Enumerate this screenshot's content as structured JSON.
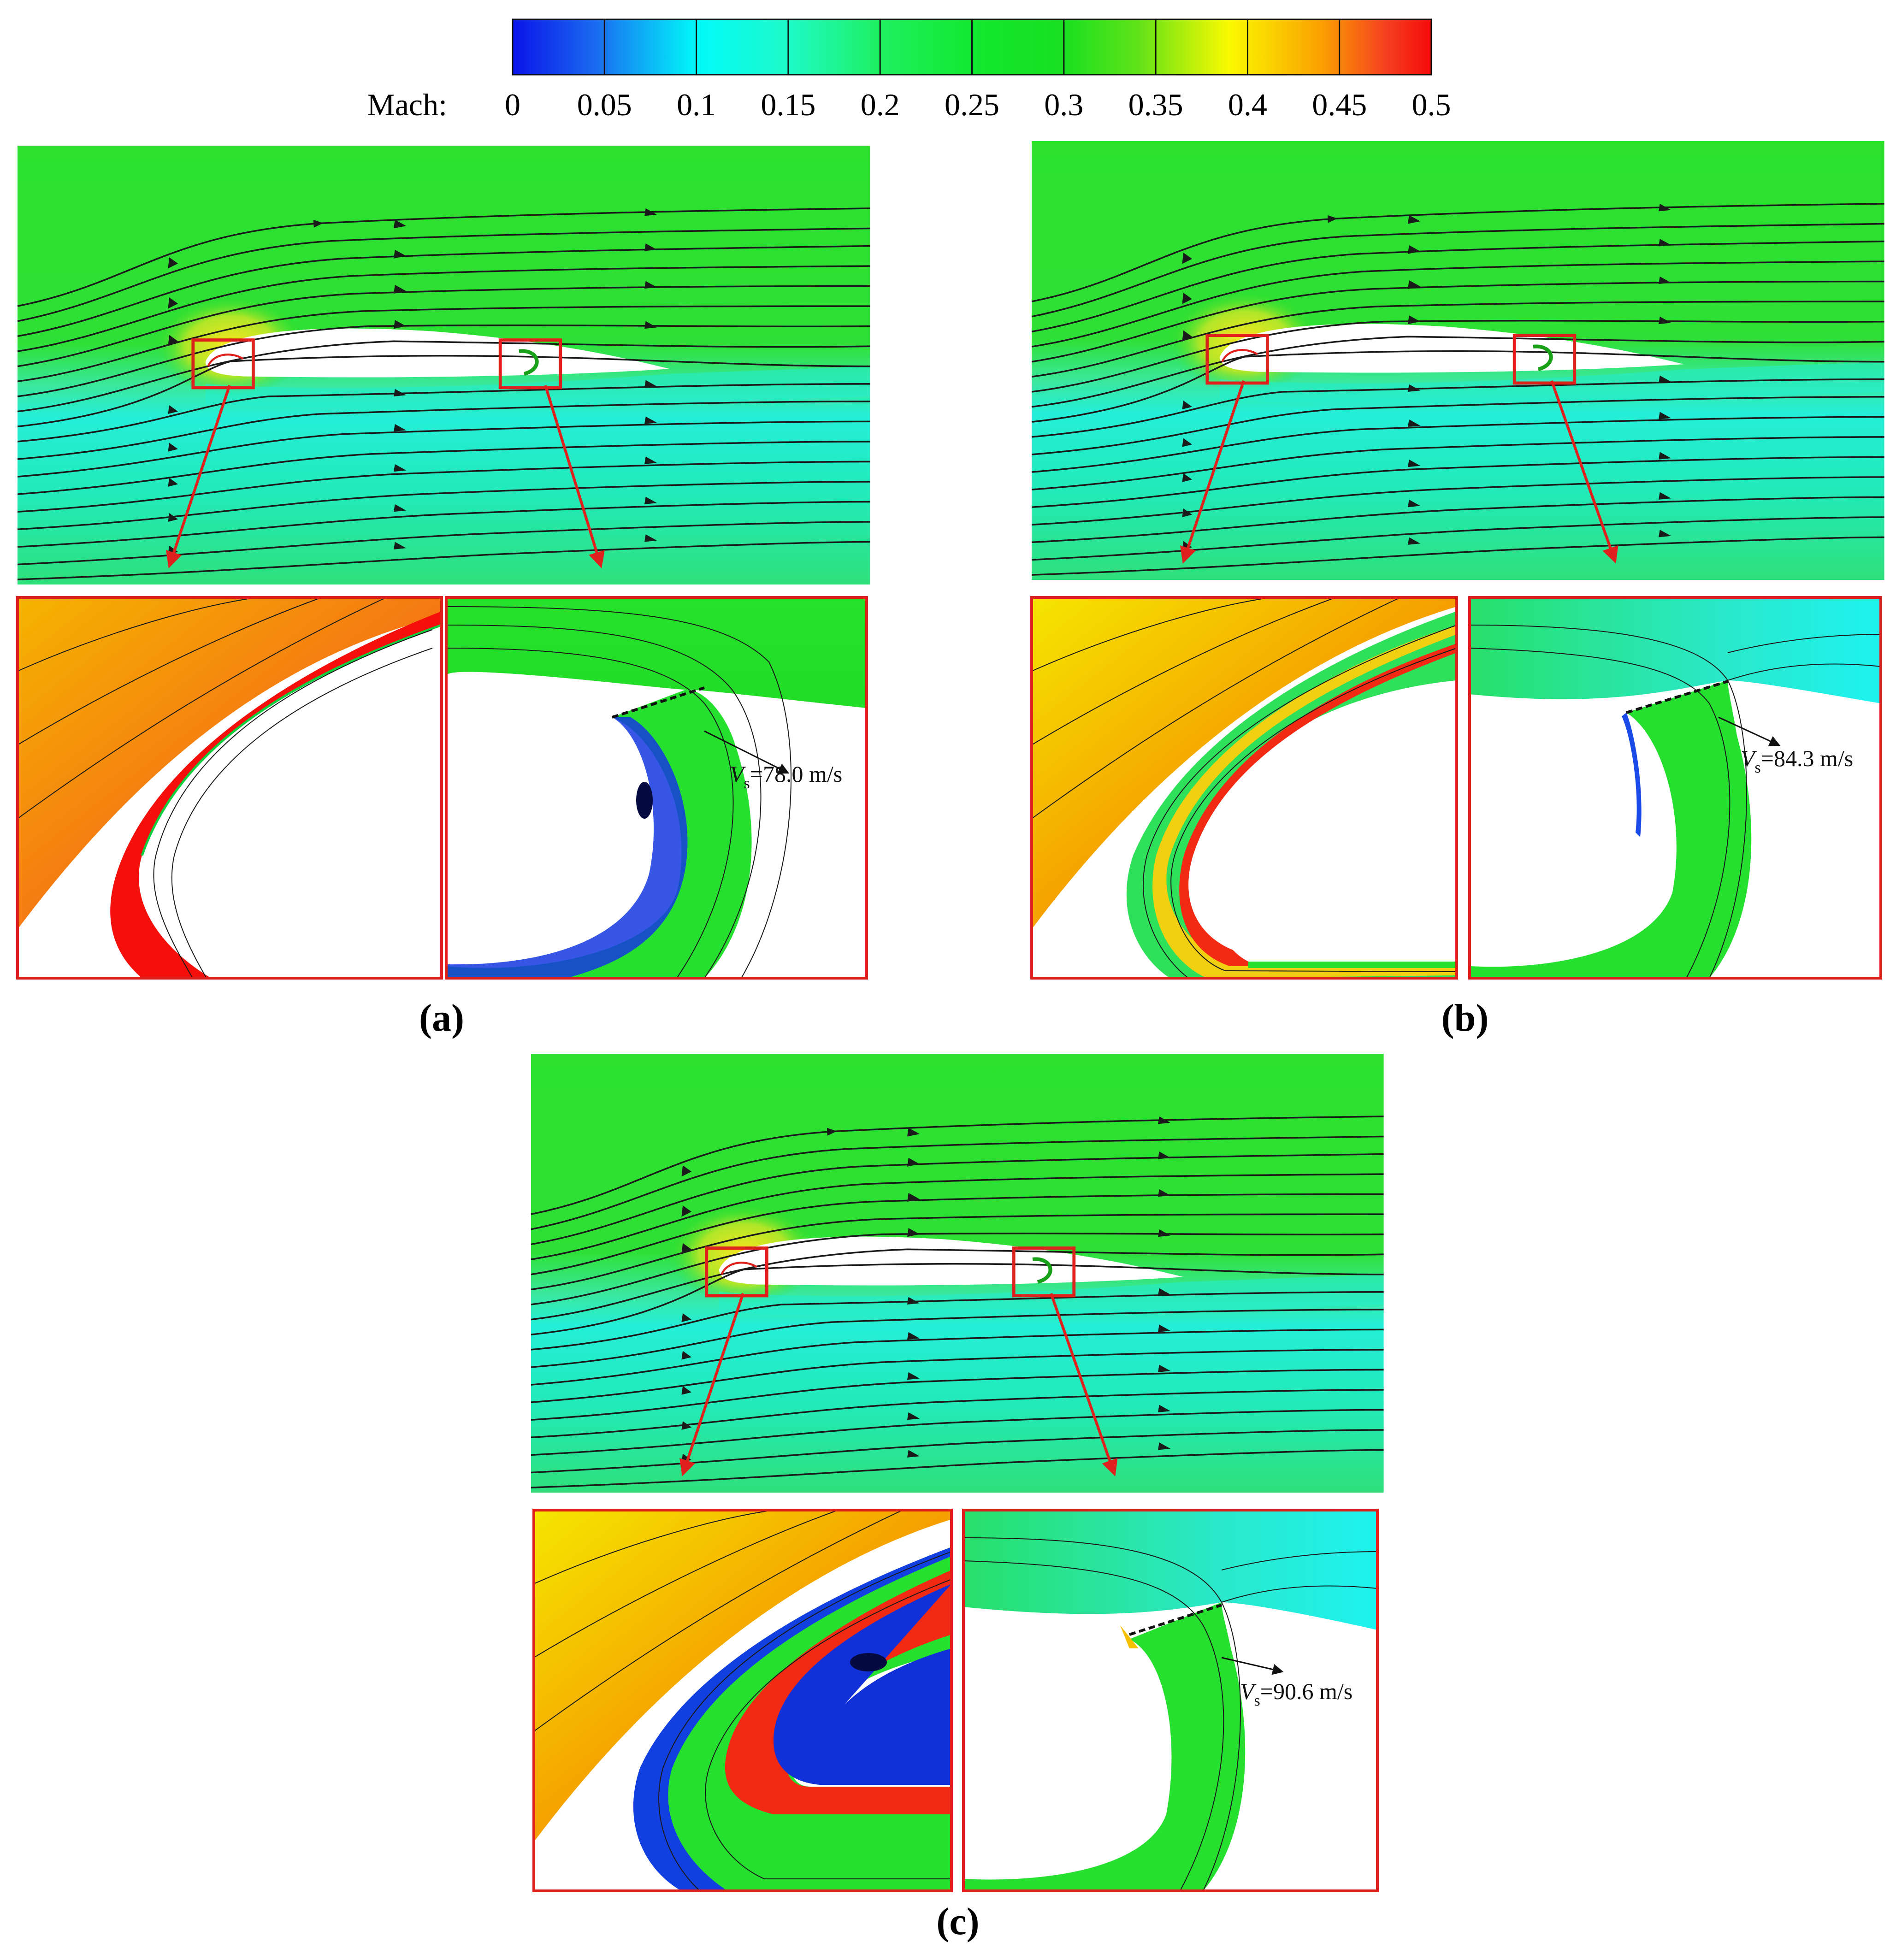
{
  "colorbar": {
    "label": "Mach:",
    "ticks": [
      "0",
      "0.05",
      "0.1",
      "0.15",
      "0.2",
      "0.25",
      "0.3",
      "0.35",
      "0.4",
      "0.45",
      "0.5"
    ],
    "colors": [
      "#0a14e8",
      "#1a6af0",
      "#00c8f0",
      "#00fae6",
      "#1efa9a",
      "#12e838",
      "#18e020",
      "#48e21a",
      "#fafa00",
      "#faa500",
      "#f5281e",
      "#f50a0a"
    ]
  },
  "panels": [
    {
      "label": "(a)",
      "vs_symbol": "V",
      "vs_subscript": "s",
      "vs_text": "=78.0 m/s"
    },
    {
      "label": "(b)",
      "vs_symbol": "V",
      "vs_subscript": "s",
      "vs_text": "=84.3 m/s"
    },
    {
      "label": "(c)",
      "vs_symbol": "V",
      "vs_subscript": "s",
      "vs_text": "=90.6 m/s"
    }
  ],
  "style": {
    "highlight_color": "#e0201c",
    "streamline_color": "#1a1a1a",
    "field_green": "#2ee02e",
    "field_cyan": "#1ef2c6"
  }
}
